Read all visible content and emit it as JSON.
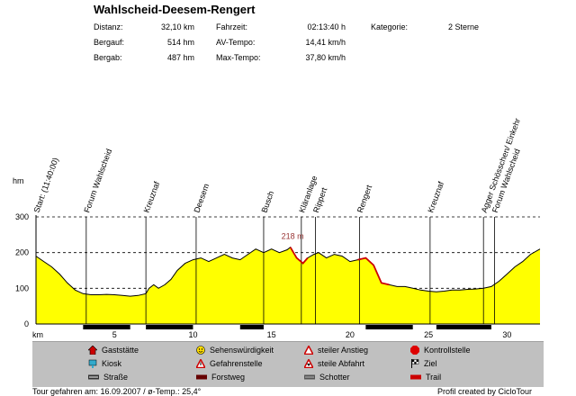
{
  "header": {
    "title": "Wahlscheid-Deesem-Rengert",
    "stats": {
      "distance_label": "Distanz:",
      "distance_value": "32,10 km",
      "uphill_label": "Bergauf:",
      "uphill_value": "514 hm",
      "downhill_label": "Bergab:",
      "downhill_value": "487 hm",
      "time_label": "Fahrzeit:",
      "time_value": "02:13:40 h",
      "avg_label": "AV-Tempo:",
      "avg_value": "14,41 km/h",
      "max_label": "Max-Tempo:",
      "max_value": "37,80 km/h",
      "category_label": "Kategorie:",
      "category_value": "2 Sterne"
    }
  },
  "chart_data": {
    "type": "area",
    "title": "",
    "xlabel": "km",
    "ylabel": "hm",
    "xlim": [
      0,
      32.1
    ],
    "ylim": [
      0,
      300
    ],
    "x_ticks": [
      5,
      10,
      15,
      20,
      25,
      30
    ],
    "y_ticks": [
      0,
      100,
      200,
      300
    ],
    "grid": "horizontal dashed",
    "fill_color": "#ffff00",
    "line_color": "#000000",
    "steep_color": "#cc0000",
    "series": [
      {
        "x": [
          0,
          0.5,
          1,
          1.5,
          2,
          2.5,
          3,
          3.5,
          4,
          4.5,
          5,
          5.5,
          6,
          6.5,
          7,
          7.2,
          7.5,
          7.8,
          8.2,
          8.6,
          9,
          9.5,
          10,
          10.5,
          11,
          11.5,
          12,
          12.5,
          13,
          13.5,
          14,
          14.5,
          15,
          15.5,
          16,
          16.2,
          16.6,
          17,
          17.3,
          17.7,
          18,
          18.5,
          19,
          19.5,
          20,
          20.5,
          21,
          21.5,
          22,
          22.5,
          23,
          23.5,
          24,
          24.5,
          25,
          25.5,
          26,
          26.5,
          27,
          27.5,
          28,
          28.5,
          29,
          29.5,
          30,
          30.5,
          31,
          31.5,
          32.1
        ],
        "y": [
          190,
          175,
          160,
          140,
          115,
          95,
          85,
          82,
          82,
          83,
          82,
          80,
          78,
          80,
          85,
          100,
          110,
          100,
          110,
          125,
          150,
          170,
          180,
          185,
          175,
          185,
          195,
          185,
          180,
          195,
          210,
          200,
          210,
          200,
          208,
          215,
          185,
          170,
          185,
          195,
          200,
          185,
          195,
          190,
          175,
          180,
          185,
          165,
          115,
          110,
          105,
          105,
          100,
          95,
          92,
          90,
          92,
          95,
          95,
          97,
          98,
          100,
          105,
          120,
          140,
          160,
          175,
          195,
          210
        ]
      }
    ],
    "steep_segments": [
      [
        16.2,
        17.3
      ],
      [
        20.5,
        22.5
      ]
    ],
    "peak_annotation": {
      "x": 16.2,
      "y": 218,
      "label": "218 m"
    },
    "route_bar": [
      [
        3,
        6
      ],
      [
        7,
        10
      ],
      [
        13,
        14.5
      ],
      [
        21,
        24
      ],
      [
        25.5,
        29
      ]
    ],
    "waypoints": [
      {
        "km": 0,
        "label": "Start: (11:40:00)"
      },
      {
        "km": 3.2,
        "label": "Forum Wahlscheid"
      },
      {
        "km": 7,
        "label": "Kreuznaf"
      },
      {
        "km": 10.2,
        "label": "Deesem"
      },
      {
        "km": 14.5,
        "label": "Busch"
      },
      {
        "km": 16.9,
        "label": "Kläranlage"
      },
      {
        "km": 17.8,
        "label": "Rippert"
      },
      {
        "km": 20.6,
        "label": "Rengert"
      },
      {
        "km": 25.1,
        "label": "Kreuznaf"
      },
      {
        "km": 28.5,
        "label": "Agger Schösschen/ Einkehr"
      },
      {
        "km": 29.2,
        "label": "Forum Wahlscheid"
      }
    ]
  },
  "legend": [
    {
      "icon": "house-icon",
      "label": "Gaststätte",
      "color": "#cc0000"
    },
    {
      "icon": "smiley-icon",
      "label": "Sehenswürdigkeit",
      "color": "#ffdd00"
    },
    {
      "icon": "climb-icon",
      "label": "steiler Anstieg",
      "color": "#cc0000"
    },
    {
      "icon": "stop-icon",
      "label": "Kontrollstelle",
      "color": "#dd0000"
    },
    {
      "icon": "kiosk-icon",
      "label": "Kiosk",
      "color": "#33aacc"
    },
    {
      "icon": "warning-icon",
      "label": "Gefahrenstelle",
      "color": "#cc0000"
    },
    {
      "icon": "descent-icon",
      "label": "steile Abfahrt",
      "color": "#cc0000"
    },
    {
      "icon": "flag-icon",
      "label": "Ziel",
      "color": "#000000"
    },
    {
      "icon": "road-icon",
      "label": "Straße",
      "color": "#333333"
    },
    {
      "icon": "forest-road-icon",
      "label": "Forstweg",
      "color": "#660000"
    },
    {
      "icon": "gravel-icon",
      "label": "Schotter",
      "color": "#555555"
    },
    {
      "icon": "trail-icon",
      "label": "Trail",
      "color": "#cc0000"
    }
  ],
  "footer": {
    "left": "Tour gefahren am: 16.09.2007  /  ø-Temp.: 25,4°",
    "right": "Profil created by CicloTour"
  }
}
